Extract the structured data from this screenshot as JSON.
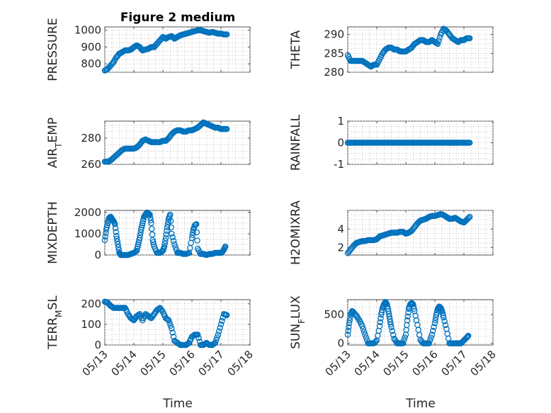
{
  "figure": {
    "title": "Figure 2 medium",
    "x_axis_label": "Time",
    "marker_color": "#0072bd"
  },
  "chart_data": [
    {
      "type": "scatter",
      "ylabel": "PRESSURE",
      "ylim": [
        750,
        1020
      ],
      "yticks": [
        "800",
        "900",
        "1000"
      ],
      "ytick_values": [
        800,
        900,
        1000
      ],
      "xlim": [
        0,
        5
      ],
      "grid": true,
      "x": [
        0.0,
        0.1,
        0.2,
        0.3,
        0.4,
        0.5,
        0.6,
        0.7,
        0.8,
        0.9,
        1.0,
        1.1,
        1.2,
        1.3,
        1.4,
        1.5,
        1.6,
        1.7,
        1.8,
        1.9,
        2.0,
        2.1,
        2.2,
        2.3,
        2.4,
        2.5,
        2.6,
        2.7,
        2.8,
        2.9,
        3.0,
        3.1,
        3.2,
        3.3,
        3.4,
        3.5,
        3.6,
        3.7,
        3.8,
        3.9,
        4.0,
        4.1,
        4.2
      ],
      "y": [
        760,
        770,
        790,
        810,
        840,
        860,
        870,
        880,
        880,
        885,
        900,
        910,
        900,
        880,
        885,
        890,
        900,
        900,
        920,
        940,
        960,
        950,
        960,
        965,
        950,
        960,
        970,
        975,
        980,
        985,
        990,
        995,
        1000,
        1000,
        995,
        990,
        985,
        990,
        985,
        980,
        980,
        975,
        975
      ]
    },
    {
      "type": "scatter",
      "ylabel": "THETA",
      "ylim": [
        280,
        292
      ],
      "yticks": [
        "280",
        "285",
        "290"
      ],
      "ytick_values": [
        280,
        285,
        290
      ],
      "xlim": [
        0,
        5
      ],
      "grid": true,
      "x": [
        0.0,
        0.1,
        0.2,
        0.3,
        0.4,
        0.5,
        0.6,
        0.7,
        0.8,
        0.9,
        1.0,
        1.1,
        1.2,
        1.3,
        1.4,
        1.5,
        1.6,
        1.7,
        1.8,
        1.9,
        2.0,
        2.1,
        2.2,
        2.3,
        2.4,
        2.5,
        2.6,
        2.7,
        2.8,
        2.9,
        3.0,
        3.1,
        3.2,
        3.3,
        3.4,
        3.5,
        3.6,
        3.7,
        3.8,
        3.9,
        4.0,
        4.1,
        4.2
      ],
      "y": [
        284.5,
        283,
        283,
        283,
        283,
        283,
        282.5,
        282,
        281.5,
        282,
        282,
        283.5,
        285,
        286,
        286.5,
        286.5,
        286,
        286,
        285.5,
        285.5,
        285.5,
        286,
        286.5,
        287.5,
        288,
        288.5,
        288.5,
        288,
        288,
        288.5,
        288,
        287.5,
        290,
        291.5,
        291,
        290,
        289,
        288.5,
        288,
        288.5,
        288.5,
        289,
        289
      ]
    },
    {
      "type": "scatter",
      "ylabel": "AIR_TEMP",
      "ylim": [
        260,
        293
      ],
      "yticks": [
        "260",
        "280"
      ],
      "ytick_values": [
        260,
        280
      ],
      "xlim": [
        0,
        5
      ],
      "grid": true,
      "x": [
        0.0,
        0.1,
        0.2,
        0.3,
        0.4,
        0.5,
        0.6,
        0.7,
        0.8,
        0.9,
        1.0,
        1.1,
        1.2,
        1.3,
        1.4,
        1.5,
        1.6,
        1.7,
        1.8,
        1.9,
        2.0,
        2.1,
        2.2,
        2.3,
        2.4,
        2.5,
        2.6,
        2.7,
        2.8,
        2.9,
        3.0,
        3.1,
        3.2,
        3.3,
        3.4,
        3.5,
        3.6,
        3.7,
        3.8,
        3.9,
        4.0,
        4.1,
        4.2
      ],
      "y": [
        262,
        262,
        263,
        265,
        267,
        269,
        271,
        272,
        272,
        272,
        272,
        273,
        275,
        278,
        279,
        278,
        277,
        277,
        277,
        277,
        278,
        278,
        280,
        283,
        285,
        286,
        286,
        285,
        285,
        286,
        286,
        287,
        288,
        290,
        292,
        291,
        290,
        289,
        288,
        288,
        287,
        287,
        287
      ]
    },
    {
      "type": "scatter",
      "ylabel": "RAINFALL",
      "ylim": [
        -1,
        1
      ],
      "yticks": [
        "-1",
        "0",
        "1"
      ],
      "ytick_values": [
        -1,
        0,
        1
      ],
      "xlim": [
        0,
        5
      ],
      "grid": true,
      "x": [
        0.0,
        0.1,
        0.2,
        0.3,
        0.4,
        0.5,
        0.6,
        0.7,
        0.8,
        0.9,
        1.0,
        1.1,
        1.2,
        1.3,
        1.4,
        1.5,
        1.6,
        1.7,
        1.8,
        1.9,
        2.0,
        2.1,
        2.2,
        2.3,
        2.4,
        2.5,
        2.6,
        2.7,
        2.8,
        2.9,
        3.0,
        3.1,
        3.2,
        3.3,
        3.4,
        3.5,
        3.6,
        3.7,
        3.8,
        3.9,
        4.0,
        4.1,
        4.2
      ],
      "y": [
        0,
        0,
        0,
        0,
        0,
        0,
        0,
        0,
        0,
        0,
        0,
        0,
        0,
        0,
        0,
        0,
        0,
        0,
        0,
        0,
        0,
        0,
        0,
        0,
        0,
        0,
        0,
        0,
        0,
        0,
        0,
        0,
        0,
        0,
        0,
        0,
        0,
        0,
        0,
        0,
        0,
        0,
        0
      ]
    },
    {
      "type": "scatter",
      "ylabel": "MIXDEPTH",
      "ylim": [
        0,
        2100
      ],
      "yticks": [
        "0",
        "1000",
        "2000"
      ],
      "ytick_values": [
        0,
        1000,
        2000
      ],
      "xlim": [
        0,
        5
      ],
      "grid": true,
      "x": [
        0.0,
        0.05,
        0.1,
        0.15,
        0.2,
        0.25,
        0.3,
        0.35,
        0.4,
        0.45,
        0.5,
        0.55,
        0.6,
        0.7,
        0.8,
        0.9,
        1.0,
        1.1,
        1.15,
        1.2,
        1.25,
        1.3,
        1.35,
        1.4,
        1.45,
        1.5,
        1.55,
        1.6,
        1.65,
        1.7,
        1.8,
        1.9,
        2.0,
        2.05,
        2.1,
        2.15,
        2.2,
        2.25,
        2.3,
        2.4,
        2.5,
        2.6,
        2.7,
        2.8,
        2.9,
        3.0,
        3.05,
        3.1,
        3.15,
        3.2,
        3.3,
        3.4,
        3.5,
        3.6,
        3.7,
        3.8,
        3.9,
        4.0,
        4.05,
        4.1,
        4.15
      ],
      "y": [
        700,
        1200,
        1500,
        1750,
        1800,
        1700,
        1600,
        1450,
        900,
        500,
        100,
        0,
        0,
        0,
        0,
        50,
        100,
        200,
        500,
        800,
        1200,
        1500,
        1800,
        1900,
        2000,
        1950,
        1900,
        1500,
        700,
        400,
        100,
        100,
        200,
        400,
        800,
        1300,
        1700,
        1900,
        1000,
        500,
        100,
        100,
        50,
        50,
        100,
        800,
        1200,
        1400,
        1450,
        300,
        50,
        50,
        0,
        50,
        50,
        100,
        100,
        100,
        150,
        250,
        400
      ]
    },
    {
      "type": "scatter",
      "ylabel": "H2OMIXRA",
      "ylim": [
        1.2,
        6
      ],
      "yticks": [
        "2",
        "4"
      ],
      "ytick_values": [
        2,
        4
      ],
      "xlim": [
        0,
        5
      ],
      "grid": true,
      "x": [
        0.0,
        0.1,
        0.2,
        0.3,
        0.4,
        0.5,
        0.6,
        0.7,
        0.8,
        0.9,
        1.0,
        1.1,
        1.2,
        1.3,
        1.4,
        1.5,
        1.6,
        1.7,
        1.8,
        1.9,
        2.0,
        2.1,
        2.2,
        2.3,
        2.4,
        2.5,
        2.6,
        2.7,
        2.8,
        2.9,
        3.0,
        3.1,
        3.2,
        3.3,
        3.4,
        3.5,
        3.6,
        3.7,
        3.8,
        3.9,
        4.0,
        4.1,
        4.2
      ],
      "y": [
        1.4,
        1.8,
        2.2,
        2.5,
        2.6,
        2.7,
        2.7,
        2.8,
        2.8,
        2.8,
        2.9,
        3.2,
        3.3,
        3.4,
        3.5,
        3.6,
        3.6,
        3.6,
        3.7,
        3.7,
        3.5,
        3.6,
        3.8,
        4.2,
        4.6,
        4.9,
        5.0,
        5.1,
        5.3,
        5.4,
        5.4,
        5.5,
        5.6,
        5.5,
        5.3,
        5.1,
        5.1,
        5.2,
        5.0,
        4.8,
        4.7,
        5.0,
        5.3
      ]
    },
    {
      "type": "scatter",
      "ylabel": "TERR_MSL",
      "ylim": [
        0,
        220
      ],
      "yticks": [
        "0",
        "100",
        "200"
      ],
      "ytick_values": [
        0,
        100,
        200
      ],
      "xlim": [
        0,
        5
      ],
      "grid": true,
      "x": [
        0.0,
        0.1,
        0.2,
        0.3,
        0.4,
        0.5,
        0.6,
        0.7,
        0.8,
        0.9,
        1.0,
        1.1,
        1.2,
        1.3,
        1.4,
        1.5,
        1.6,
        1.7,
        1.8,
        1.9,
        2.0,
        2.1,
        2.2,
        2.3,
        2.4,
        2.5,
        2.6,
        2.7,
        2.8,
        2.9,
        3.0,
        3.1,
        3.2,
        3.3,
        3.4,
        3.5,
        3.6,
        3.7,
        3.8,
        3.9,
        4.0,
        4.1,
        4.2
      ],
      "y": [
        210,
        205,
        190,
        180,
        180,
        180,
        180,
        180,
        150,
        130,
        120,
        140,
        150,
        120,
        150,
        140,
        130,
        150,
        170,
        180,
        160,
        130,
        120,
        80,
        20,
        10,
        0,
        0,
        0,
        10,
        40,
        50,
        50,
        0,
        0,
        10,
        0,
        0,
        10,
        50,
        100,
        150,
        145
      ]
    },
    {
      "type": "scatter",
      "ylabel": "SUN_FLUX",
      "ylim": [
        -30,
        760
      ],
      "yticks": [
        "0",
        "500"
      ],
      "ytick_values": [
        0,
        500
      ],
      "xlim": [
        0,
        5
      ],
      "grid": true,
      "x": [
        0.0,
        0.05,
        0.1,
        0.15,
        0.2,
        0.3,
        0.4,
        0.5,
        0.6,
        0.7,
        0.8,
        0.9,
        1.0,
        1.1,
        1.15,
        1.2,
        1.25,
        1.3,
        1.35,
        1.4,
        1.45,
        1.5,
        1.6,
        1.7,
        1.8,
        1.9,
        2.0,
        2.05,
        2.1,
        2.15,
        2.2,
        2.25,
        2.3,
        2.4,
        2.5,
        2.6,
        2.7,
        2.8,
        2.9,
        3.0,
        3.05,
        3.1,
        3.15,
        3.2,
        3.25,
        3.3,
        3.4,
        3.5,
        3.6,
        3.7,
        3.8,
        3.9,
        4.0,
        4.1,
        4.15
      ],
      "y": [
        150,
        350,
        500,
        560,
        540,
        480,
        400,
        300,
        150,
        0,
        0,
        0,
        50,
        300,
        500,
        620,
        680,
        720,
        680,
        560,
        420,
        280,
        80,
        0,
        0,
        0,
        150,
        400,
        600,
        680,
        700,
        680,
        560,
        320,
        60,
        0,
        0,
        0,
        150,
        350,
        500,
        600,
        640,
        620,
        560,
        450,
        250,
        0,
        0,
        0,
        0,
        0,
        50,
        100,
        130
      ]
    }
  ],
  "x_tick_labels": [
    "05/13",
    "05/14",
    "05/15",
    "05/16",
    "05/17",
    "05/18"
  ]
}
